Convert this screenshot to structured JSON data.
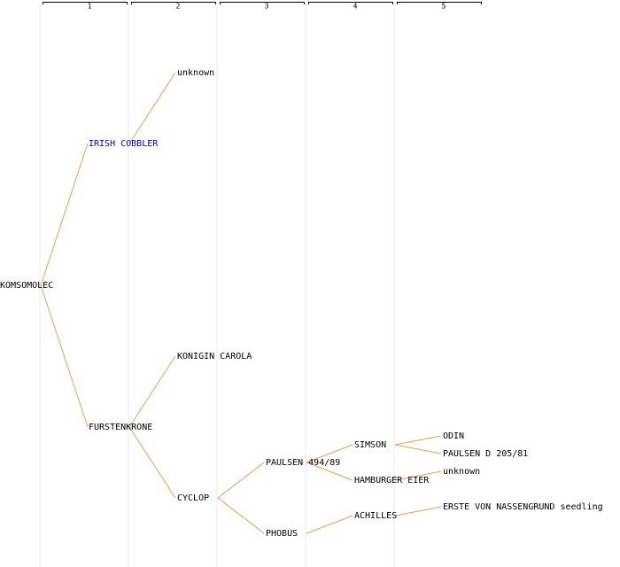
{
  "header": {
    "columns": [
      "1",
      "2",
      "3",
      "4",
      "5"
    ]
  },
  "nodes": [
    {
      "label": "KOMSOMOLEC"
    },
    {
      "label": "IRISH COBBLER"
    },
    {
      "label": "unknown"
    },
    {
      "label": "FURSTENKRONE"
    },
    {
      "label": "KONIGIN CAROLA"
    },
    {
      "label": "CYCLOP"
    },
    {
      "label": "PAULSEN 494/89"
    },
    {
      "label": "PHOBUS"
    },
    {
      "label": "SIMSON"
    },
    {
      "label": "HAMBURGER EIER"
    },
    {
      "label": "ACHILLES"
    },
    {
      "label": "ODIN"
    },
    {
      "label": "PAULSEN D 205/81"
    },
    {
      "label": "unknown"
    },
    {
      "label": "ERSTE VON NASSENGRUND seedling"
    }
  ]
}
